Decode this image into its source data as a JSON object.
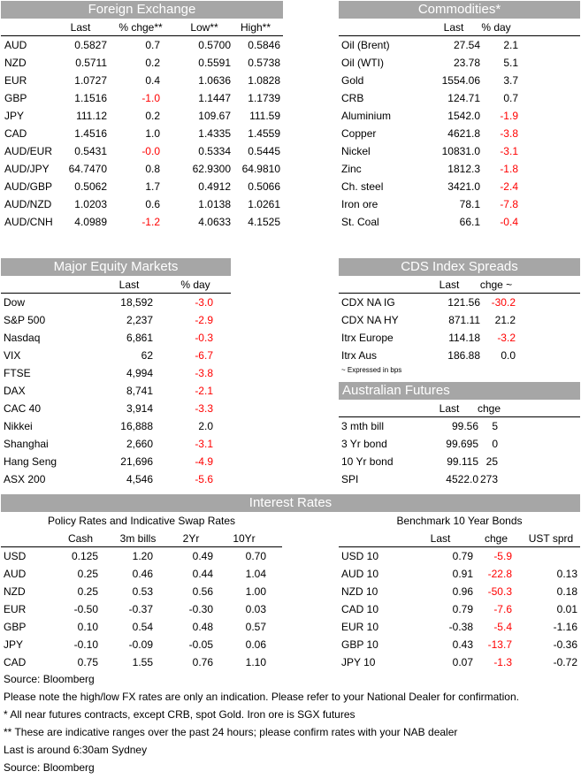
{
  "fx": {
    "title": "Foreign Exchange",
    "headers": [
      "",
      "Last",
      "% chge**",
      "Low**",
      "High**"
    ],
    "rows": [
      [
        "AUD",
        "0.5827",
        "0.7",
        "0.5700",
        "0.5846"
      ],
      [
        "NZD",
        "0.5711",
        "0.2",
        "0.5591",
        "0.5738"
      ],
      [
        "EUR",
        "1.0727",
        "0.4",
        "1.0636",
        "1.0828"
      ],
      [
        "GBP",
        "1.1516",
        "-1.0",
        "1.1447",
        "1.1739"
      ],
      [
        "JPY",
        "111.12",
        "0.2",
        "109.67",
        "111.59"
      ],
      [
        "CAD",
        "1.4516",
        "1.0",
        "1.4335",
        "1.4559"
      ],
      [
        "AUD/EUR",
        "0.5431",
        "-0.0",
        "0.5334",
        "0.5445"
      ],
      [
        "AUD/JPY",
        "64.7470",
        "0.8",
        "62.9300",
        "64.9810"
      ],
      [
        "AUD/GBP",
        "0.5062",
        "1.7",
        "0.4912",
        "0.5066"
      ],
      [
        "AUD/NZD",
        "1.0203",
        "0.6",
        "1.0138",
        "1.0261"
      ],
      [
        "AUD/CNH",
        "4.0989",
        "-1.2",
        "4.0633",
        "4.1525"
      ]
    ]
  },
  "commodities": {
    "title": "Commodities*",
    "headers": [
      "",
      "Last",
      "% day"
    ],
    "rows": [
      [
        "Oil (Brent)",
        "27.54",
        "2.1"
      ],
      [
        "Oil (WTI)",
        "23.78",
        "5.1"
      ],
      [
        "Gold",
        "1554.06",
        "3.7"
      ],
      [
        "CRB",
        "124.71",
        "0.7"
      ],
      [
        "Aluminium",
        "1542.0",
        "-1.9"
      ],
      [
        "Copper",
        "4621.8",
        "-3.8"
      ],
      [
        "Nickel",
        "10831.0",
        "-3.1"
      ],
      [
        "Zinc",
        "1812.3",
        "-1.8"
      ],
      [
        "Ch. steel",
        "3421.0",
        "-2.4"
      ],
      [
        "Iron ore",
        "78.1",
        "-7.8"
      ],
      [
        "St. Coal",
        "66.1",
        "-0.4"
      ]
    ]
  },
  "equity": {
    "title": "Major Equity Markets",
    "headers": [
      "",
      "Last",
      "% day"
    ],
    "rows": [
      [
        "Dow",
        "18,592",
        "-3.0"
      ],
      [
        "S&P 500",
        "2,237",
        "-2.9"
      ],
      [
        "Nasdaq",
        "6,861",
        "-0.3"
      ],
      [
        "VIX",
        "62",
        "-6.7"
      ],
      [
        "FTSE",
        "4,994",
        "-3.8"
      ],
      [
        "DAX",
        "8,741",
        "-2.1"
      ],
      [
        "CAC 40",
        "3,914",
        "-3.3"
      ],
      [
        "Nikkei",
        "16,888",
        "2.0"
      ],
      [
        "Shanghai",
        "2,660",
        "-3.1"
      ],
      [
        "Hang Seng",
        "21,696",
        "-4.9"
      ],
      [
        "ASX 200",
        "4,546",
        "-5.6"
      ]
    ]
  },
  "cds": {
    "title": "CDS Index Spreads",
    "headers": [
      "",
      "Last",
      "chge ~"
    ],
    "rows": [
      [
        "CDX NA IG",
        "121.56",
        "-30.2"
      ],
      [
        "CDX NA HY",
        "871.11",
        "21.2"
      ],
      [
        "Itrx Europe",
        "114.18",
        "-3.2"
      ],
      [
        "Itrx Aus",
        "186.88",
        "0.0"
      ]
    ],
    "note": "~ Expressed in bps"
  },
  "futures": {
    "title": "Australian Futures",
    "headers": [
      "",
      "Last",
      "chge"
    ],
    "rows": [
      [
        "3 mth bill",
        "99.56",
        "5"
      ],
      [
        "3 Yr bond",
        "99.695",
        "0"
      ],
      [
        "10 Yr bond",
        "99.115",
        "25"
      ],
      [
        "SPI",
        "4522.0",
        "273"
      ]
    ]
  },
  "rates": {
    "title": "Interest Rates",
    "policy": {
      "subtitle": "Policy Rates and Indicative Swap Rates",
      "headers": [
        "",
        "Cash",
        "3m bills",
        "2Yr",
        "10Yr"
      ],
      "rows": [
        [
          "USD",
          "0.125",
          "1.20",
          "0.49",
          "0.70"
        ],
        [
          "AUD",
          "0.25",
          "0.46",
          "0.44",
          "1.04"
        ],
        [
          "NZD",
          "0.25",
          "0.53",
          "0.56",
          "1.00"
        ],
        [
          "EUR",
          "-0.50",
          "-0.37",
          "-0.30",
          "0.03"
        ],
        [
          "GBP",
          "0.10",
          "0.54",
          "0.48",
          "0.57"
        ],
        [
          "JPY",
          "-0.10",
          "-0.09",
          "-0.05",
          "0.06"
        ],
        [
          "CAD",
          "0.75",
          "1.55",
          "0.76",
          "1.10"
        ]
      ]
    },
    "bonds": {
      "subtitle": "Benchmark 10 Year Bonds",
      "headers": [
        "",
        "Last",
        "chge",
        "UST sprd"
      ],
      "rows": [
        [
          "USD 10",
          "0.79",
          "-5.9",
          ""
        ],
        [
          "AUD 10",
          "0.91",
          "-22.8",
          "0.13"
        ],
        [
          "NZD 10",
          "0.96",
          "-50.3",
          "0.18"
        ],
        [
          "CAD 10",
          "0.79",
          "-7.6",
          "0.01"
        ],
        [
          "EUR 10",
          "-0.38",
          "-5.4",
          "-1.16"
        ],
        [
          "GBP 10",
          "0.43",
          "-13.7",
          "-0.36"
        ],
        [
          "JPY 10",
          "0.07",
          "-1.3",
          "-0.72"
        ]
      ]
    }
  },
  "footnotes": [
    "Source: Bloomberg",
    "Please note the high/low FX rates are only an indication. Please refer to your National Dealer for confirmation.",
    "* All near futures contracts, except CRB, spot Gold.  Iron ore is SGX futures",
    "** These are indicative ranges over the past 24 hours; please confirm rates with your NAB dealer",
    "Last is around 6:30am Sydney",
    "Source: Bloomberg"
  ],
  "colors": {
    "band": "#a6a6a6",
    "negative": "#ff0000"
  }
}
